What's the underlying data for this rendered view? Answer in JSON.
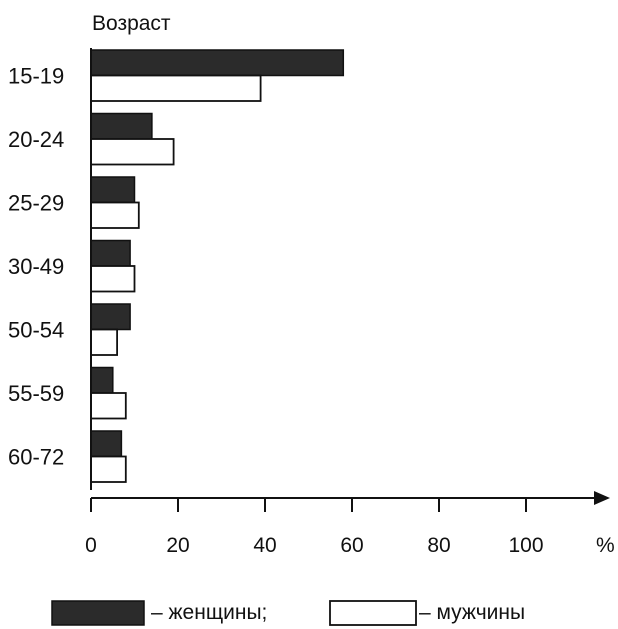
{
  "chart_data": {
    "type": "bar",
    "orientation": "horizontal",
    "title": "Возраст",
    "categories": [
      "15-19",
      "20-24",
      "25-29",
      "30-49",
      "50-54",
      "55-59",
      "60-72"
    ],
    "series": [
      {
        "name": "– женщины;",
        "values": [
          58,
          14,
          10,
          9,
          9,
          5,
          7
        ],
        "color": "#2b2b2b",
        "fill": "dark"
      },
      {
        "name": "– мужчины",
        "values": [
          39,
          19,
          11,
          10,
          6,
          8,
          8
        ],
        "color": "#ffffff",
        "fill": "white"
      }
    ],
    "xticks": [
      "0",
      "20",
      "40",
      "60",
      "80",
      "100"
    ],
    "xunit": "%",
    "xlim": [
      0,
      110
    ],
    "grid": false,
    "legend_position": "bottom"
  }
}
